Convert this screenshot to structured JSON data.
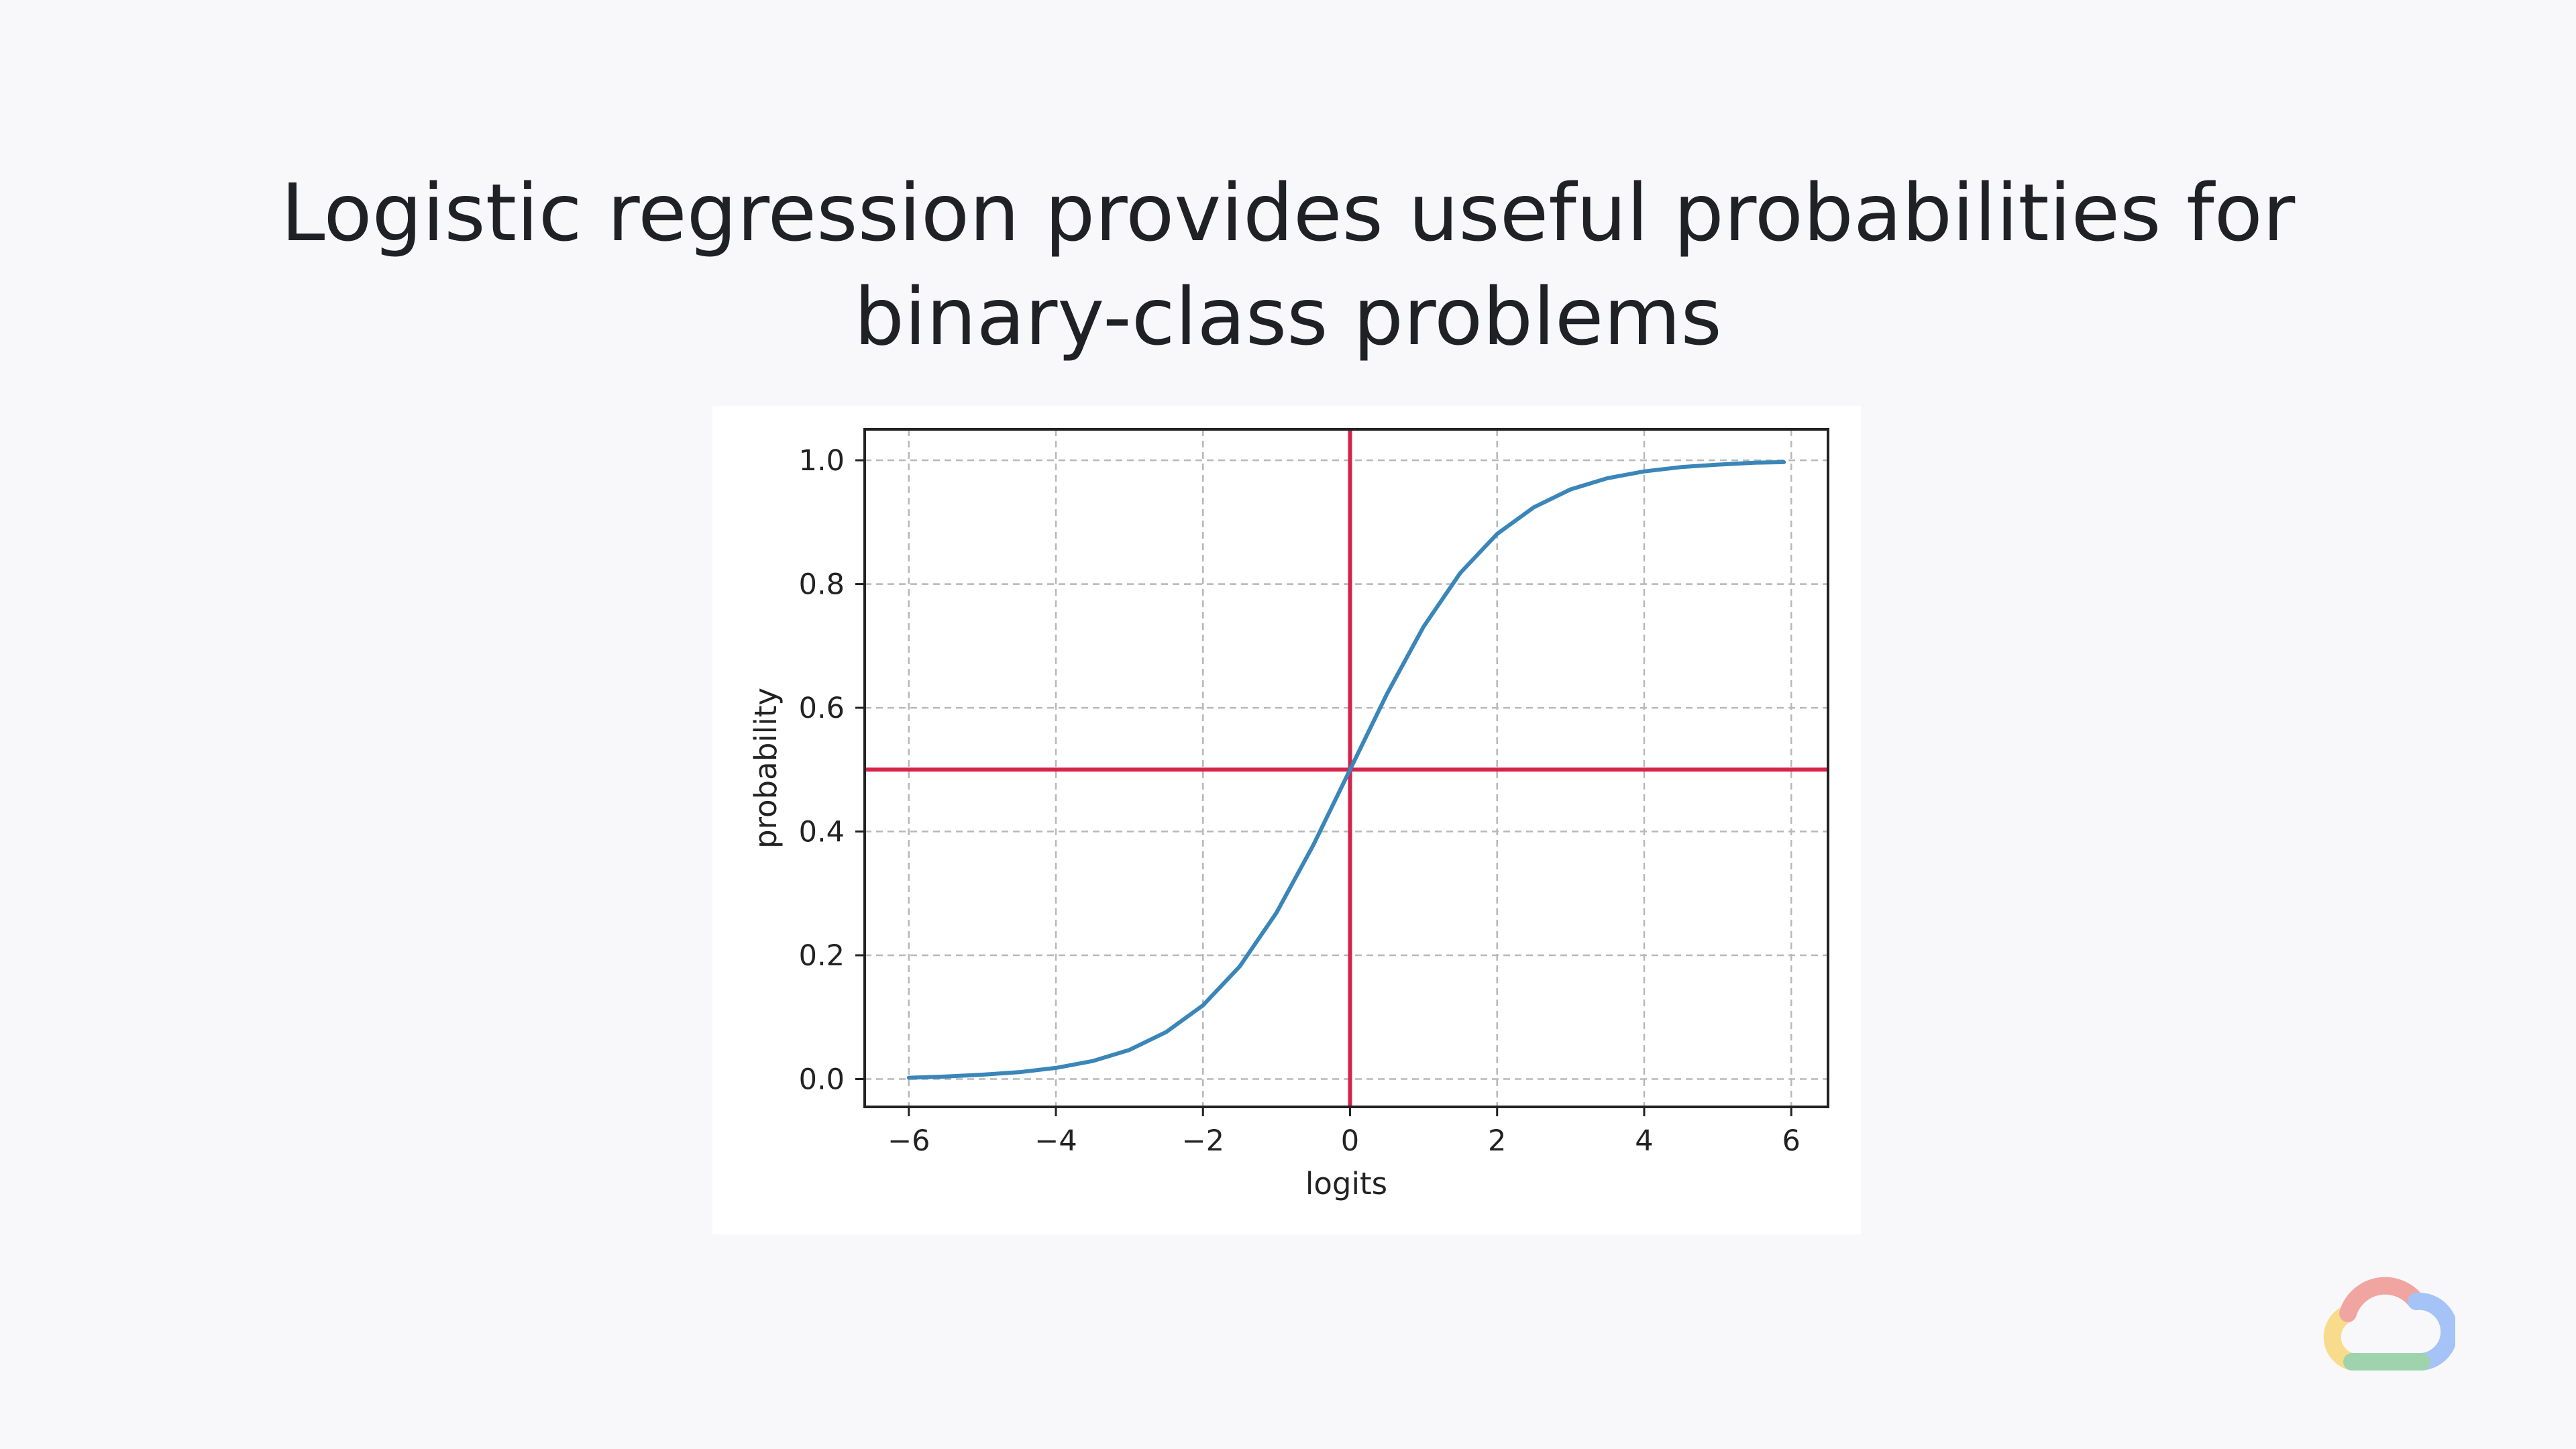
{
  "slide": {
    "title_line1": "Logistic regression provides useful probabilities for",
    "title_line2": "binary-class problems"
  },
  "chart_data": {
    "type": "line",
    "title": "",
    "xlabel": "logits",
    "ylabel": "probability",
    "xlim": [
      -6.6,
      6.5
    ],
    "ylim": [
      -0.045,
      1.05
    ],
    "xticks": [
      -6,
      -4,
      -2,
      0,
      2,
      4,
      6
    ],
    "xtick_labels": [
      "−6",
      "−4",
      "−2",
      "0",
      "2",
      "4",
      "6"
    ],
    "yticks": [
      0.0,
      0.2,
      0.4,
      0.6,
      0.8,
      1.0
    ],
    "ytick_labels": [
      "0.0",
      "0.2",
      "0.4",
      "0.6",
      "0.8",
      "1.0"
    ],
    "grid": true,
    "series": [
      {
        "color": "#3a86b9",
        "x": [
          -6,
          -5.5,
          -5,
          -4.5,
          -4,
          -3.5,
          -3,
          -2.5,
          -2,
          -1.5,
          -1,
          -0.5,
          0,
          0.5,
          1,
          1.5,
          2,
          2.5,
          3,
          3.5,
          4,
          4.5,
          5,
          5.5,
          5.9
        ],
        "y": [
          0.002,
          0.004,
          0.007,
          0.011,
          0.018,
          0.029,
          0.047,
          0.076,
          0.119,
          0.182,
          0.269,
          0.378,
          0.5,
          0.622,
          0.731,
          0.818,
          0.881,
          0.924,
          0.953,
          0.971,
          0.982,
          0.989,
          0.993,
          0.996,
          0.997
        ]
      }
    ],
    "reference_lines": {
      "color": "#d6234a",
      "vertical_x": 0,
      "horizontal_y": 0.5
    }
  },
  "logo": {
    "icon": "google-cloud-logo",
    "colors": [
      "#ea4335",
      "#4285f4",
      "#34a853",
      "#fbbc04"
    ]
  }
}
